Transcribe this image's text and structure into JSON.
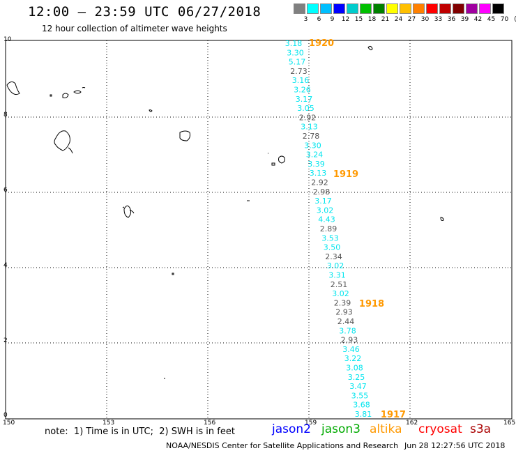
{
  "title": "12:00 – 23:59 UTC 06/27/2018",
  "subtitle": "12 hour collection of altimeter wave heights",
  "legend": {
    "unit": "(ft)",
    "labels": [
      "3",
      "6",
      "9",
      "12",
      "15",
      "18",
      "21",
      "24",
      "27",
      "30",
      "33",
      "36",
      "39",
      "42",
      "45",
      "70"
    ],
    "colors": [
      "#808080",
      "#00ffff",
      "#00bfff",
      "#0000ff",
      "#00cccc",
      "#00c000",
      "#008000",
      "#ffff00",
      "#ffc000",
      "#ff8000",
      "#ff0000",
      "#c00000",
      "#800000",
      "#a000a0",
      "#ff00ff",
      "#000000"
    ]
  },
  "axes": {
    "x_ticks": [
      "150",
      "153",
      "156",
      "159",
      "162",
      "165"
    ],
    "y_ticks": [
      "10",
      "8",
      "6",
      "4",
      "2",
      "0"
    ]
  },
  "passes": [
    {
      "label": "1920",
      "color": "#ff9900"
    },
    {
      "label": "1919",
      "color": "#ff9900"
    },
    {
      "label": "1918",
      "color": "#ff9900"
    },
    {
      "label": "1917",
      "color": "#ff9900"
    }
  ],
  "readings": [
    {
      "v": "3.18",
      "c": "#00e5ee"
    },
    {
      "v": "3.30",
      "c": "#00e5ee"
    },
    {
      "v": "5.17",
      "c": "#00e5ee"
    },
    {
      "v": "2.73",
      "c": "#555555"
    },
    {
      "v": "3.16",
      "c": "#00e5ee"
    },
    {
      "v": "3.26",
      "c": "#00e5ee"
    },
    {
      "v": "3.17",
      "c": "#00e5ee"
    },
    {
      "v": "3.05",
      "c": "#00e5ee"
    },
    {
      "v": "2.92",
      "c": "#555555"
    },
    {
      "v": "3.13",
      "c": "#00e5ee"
    },
    {
      "v": "2.78",
      "c": "#555555"
    },
    {
      "v": "3.30",
      "c": "#00e5ee"
    },
    {
      "v": "3.24",
      "c": "#00e5ee"
    },
    {
      "v": "3.39",
      "c": "#00e5ee"
    },
    {
      "v": "3.13",
      "c": "#00e5ee"
    },
    {
      "v": "2.92",
      "c": "#555555"
    },
    {
      "v": "2.98",
      "c": "#555555"
    },
    {
      "v": "3.17",
      "c": "#00e5ee"
    },
    {
      "v": "3.02",
      "c": "#00e5ee"
    },
    {
      "v": "4.43",
      "c": "#00e5ee"
    },
    {
      "v": "2.89",
      "c": "#555555"
    },
    {
      "v": "3.53",
      "c": "#00e5ee"
    },
    {
      "v": "3.50",
      "c": "#00e5ee"
    },
    {
      "v": "2.34",
      "c": "#555555"
    },
    {
      "v": "3.02",
      "c": "#00e5ee"
    },
    {
      "v": "3.31",
      "c": "#00e5ee"
    },
    {
      "v": "2.51",
      "c": "#555555"
    },
    {
      "v": "3.02",
      "c": "#00e5ee"
    },
    {
      "v": "2.39",
      "c": "#555555"
    },
    {
      "v": "2.93",
      "c": "#555555"
    },
    {
      "v": "2.44",
      "c": "#555555"
    },
    {
      "v": "3.78",
      "c": "#00e5ee"
    },
    {
      "v": "2.93",
      "c": "#555555"
    },
    {
      "v": "3.46",
      "c": "#00e5ee"
    },
    {
      "v": "3.22",
      "c": "#00e5ee"
    },
    {
      "v": "3.08",
      "c": "#00e5ee"
    },
    {
      "v": "3.25",
      "c": "#00e5ee"
    },
    {
      "v": "3.47",
      "c": "#00e5ee"
    },
    {
      "v": "3.55",
      "c": "#00e5ee"
    },
    {
      "v": "3.68",
      "c": "#00e5ee"
    },
    {
      "v": "3.81",
      "c": "#00e5ee"
    }
  ],
  "note": "note:  1) Time is in UTC;  2) SWH is in feet",
  "satellites": [
    {
      "name": "jason2",
      "color": "#0000ff"
    },
    {
      "name": "jason3",
      "color": "#00aa00"
    },
    {
      "name": "altika",
      "color": "#ff9900"
    },
    {
      "name": "cryosat",
      "color": "#ff0000"
    },
    {
      "name": "s3a",
      "color": "#aa0000"
    }
  ],
  "credit": "NOAA/NESDIS Center for Satellite Applications and Research",
  "credit_time": "Jun 28 12:27:56 UTC 2018"
}
